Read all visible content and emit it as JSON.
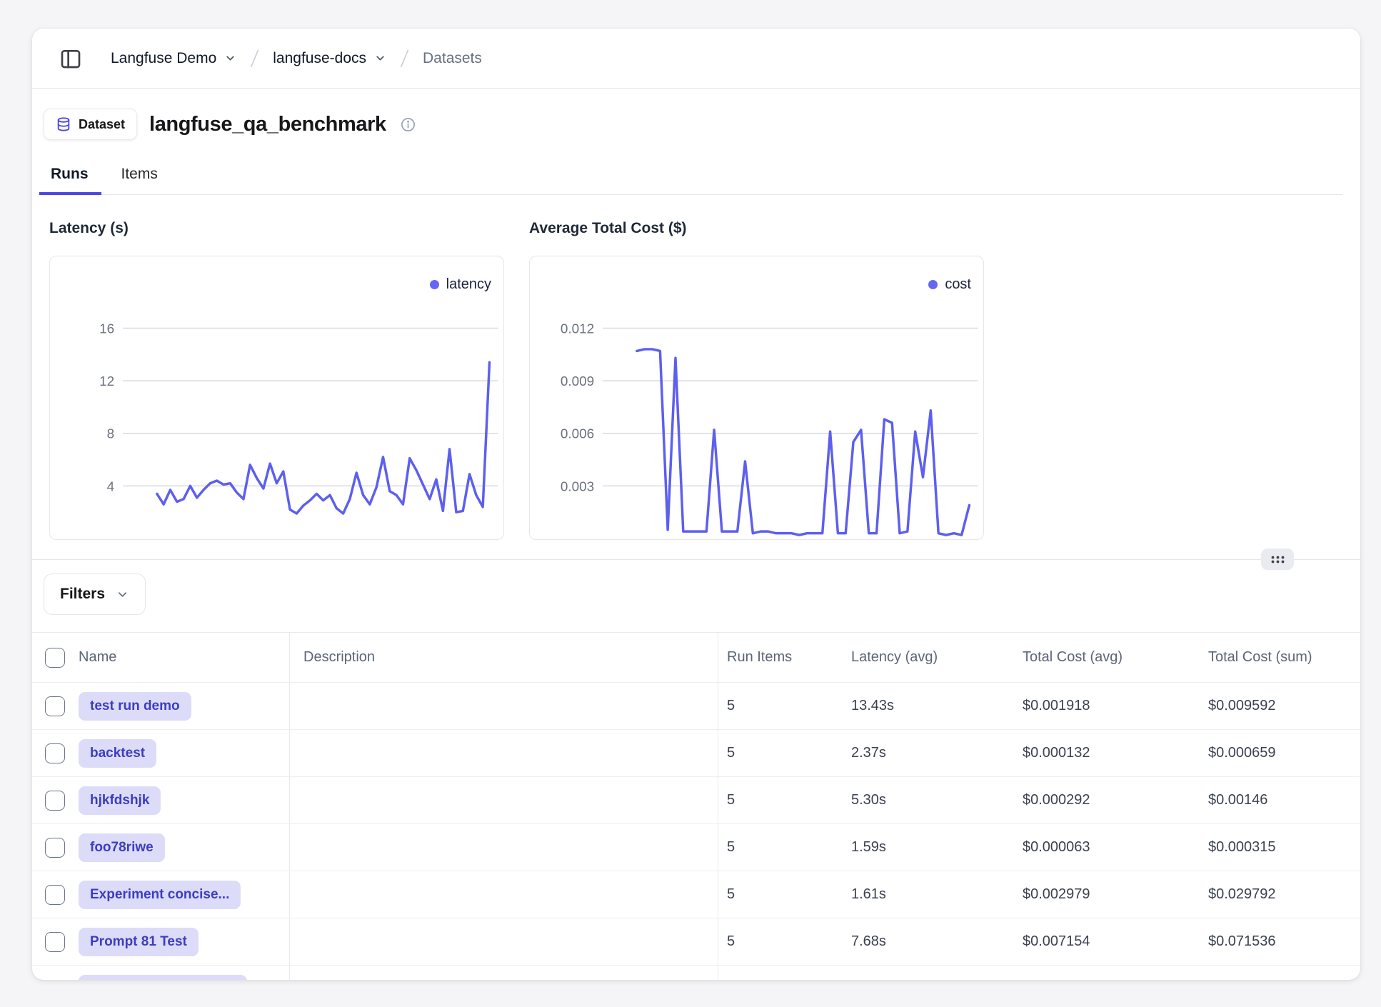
{
  "colors": {
    "accent": "#4f46e5",
    "chart_line": "#5d5fef",
    "legend_dot": "#6467f2",
    "badge_bg": "#dcdcf9",
    "badge_text": "#3d3dc0",
    "page_bg": "#f5f5f7"
  },
  "topbar": {
    "breadcrumb": {
      "org": "Langfuse Demo",
      "project": "langfuse-docs",
      "page": "Datasets"
    }
  },
  "dataset_header": {
    "badge": "Dataset",
    "title": "langfuse_qa_benchmark"
  },
  "tabs": {
    "runs": "Runs",
    "items": "Items"
  },
  "chart_data": [
    {
      "type": "line",
      "title": "Latency (s)",
      "legend": "latency",
      "legend_position": "top-right",
      "grid": true,
      "x_labels_visible": false,
      "y_ticks": [
        16,
        12,
        8,
        4
      ],
      "ylim": [
        0,
        18
      ],
      "color": "#5d5fef",
      "series": [
        {
          "name": "latency",
          "values": [
            3.4,
            2.6,
            3.7,
            2.8,
            3.0,
            4.0,
            3.1,
            3.7,
            4.2,
            4.4,
            4.1,
            4.2,
            3.5,
            3.0,
            5.6,
            4.6,
            3.8,
            5.7,
            4.2,
            5.1,
            2.2,
            1.9,
            2.5,
            2.9,
            3.4,
            2.9,
            3.3,
            2.3,
            1.9,
            3.0,
            5.0,
            3.3,
            2.6,
            3.9,
            6.2,
            3.6,
            3.3,
            2.6,
            6.1,
            5.2,
            4.1,
            3.0,
            4.5,
            2.1,
            6.8,
            2.0,
            2.1,
            4.9,
            3.3,
            2.4,
            13.4
          ]
        }
      ]
    },
    {
      "type": "line",
      "title": "Average Total Cost ($)",
      "legend": "cost",
      "legend_position": "top-right",
      "grid": true,
      "x_labels_visible": false,
      "y_ticks": [
        0.012,
        0.009,
        0.006,
        0.003
      ],
      "ylim": [
        0,
        0.0135
      ],
      "color": "#5d5fef",
      "series": [
        {
          "name": "cost",
          "values": [
            0.0107,
            0.0108,
            0.0108,
            0.0107,
            0.0005,
            0.0103,
            0.0004,
            0.0004,
            0.0004,
            0.0004,
            0.0062,
            0.0004,
            0.0004,
            0.0004,
            0.0044,
            0.0003,
            0.0004,
            0.0004,
            0.0003,
            0.0003,
            0.0003,
            0.0002,
            0.0003,
            0.0003,
            0.0003,
            0.0061,
            0.0003,
            0.0003,
            0.0055,
            0.0062,
            0.0003,
            0.0003,
            0.0068,
            0.0066,
            0.0003,
            0.0004,
            0.0061,
            0.0035,
            0.0073,
            0.0003,
            0.0002,
            0.0003,
            0.0002,
            0.0019
          ]
        }
      ]
    }
  ],
  "filters": {
    "label": "Filters"
  },
  "table": {
    "headers": {
      "name": "Name",
      "description": "Description",
      "run_items": "Run Items",
      "latency_avg": "Latency (avg)",
      "total_cost_avg": "Total Cost (avg)",
      "total_cost_sum": "Total Cost (sum)"
    },
    "rows": [
      {
        "name": "test run demo",
        "description": "",
        "run_items": "5",
        "latency_avg": "13.43s",
        "total_cost_avg": "$0.001918",
        "total_cost_sum": "$0.009592"
      },
      {
        "name": "backtest",
        "description": "",
        "run_items": "5",
        "latency_avg": "2.37s",
        "total_cost_avg": "$0.000132",
        "total_cost_sum": "$0.000659"
      },
      {
        "name": "hjkfdshjk",
        "description": "",
        "run_items": "5",
        "latency_avg": "5.30s",
        "total_cost_avg": "$0.000292",
        "total_cost_sum": "$0.00146"
      },
      {
        "name": "foo78riwe",
        "description": "",
        "run_items": "5",
        "latency_avg": "1.59s",
        "total_cost_avg": "$0.000063",
        "total_cost_sum": "$0.000315"
      },
      {
        "name": "Experiment concise...",
        "description": "",
        "run_items": "5",
        "latency_avg": "1.61s",
        "total_cost_avg": "$0.002979",
        "total_cost_sum": "$0.029792"
      },
      {
        "name": "Prompt 81 Test",
        "description": "",
        "run_items": "5",
        "latency_avg": "7.68s",
        "total_cost_avg": "$0.007154",
        "total_cost_sum": "$0.071536"
      }
    ]
  }
}
